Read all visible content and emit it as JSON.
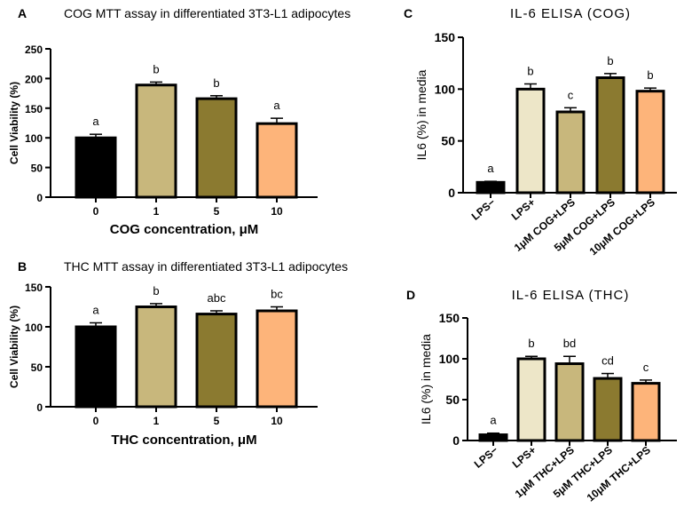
{
  "chart_data": [
    {
      "panel": "A",
      "type": "bar",
      "title": "COG MTT assay in differentiated 3T3-L1 adipocytes",
      "xlabel": "COG concentration, μM",
      "ylabel": "Cell Viability (%)",
      "categories": [
        "0",
        "1",
        "5",
        "10"
      ],
      "values": [
        100,
        189,
        166,
        124
      ],
      "errors": [
        6,
        5,
        5,
        9
      ],
      "letters": [
        "a",
        "b",
        "b",
        "a"
      ],
      "colors": [
        "#000000",
        "#c8b77c",
        "#8b7a30",
        "#fdb47a"
      ],
      "ylim": [
        0,
        250
      ],
      "yticks": [
        0,
        50,
        100,
        150,
        200,
        250
      ]
    },
    {
      "panel": "B",
      "type": "bar",
      "title": "THC MTT assay in differentiated 3T3-L1 adipocytes",
      "xlabel": "THC concentration, μM",
      "ylabel": "Cell Viability (%)",
      "categories": [
        "0",
        "1",
        "5",
        "10"
      ],
      "values": [
        100,
        125,
        116,
        120
      ],
      "errors": [
        5,
        4,
        4,
        5
      ],
      "letters": [
        "a",
        "b",
        "abc",
        "bc"
      ],
      "colors": [
        "#000000",
        "#c8b77c",
        "#8b7a30",
        "#fdb47a"
      ],
      "ylim": [
        0,
        150
      ],
      "yticks": [
        0,
        50,
        100,
        150
      ]
    },
    {
      "panel": "C",
      "type": "bar",
      "title": "IL-6 ELISA (COG)",
      "xlabel": "",
      "ylabel": "IL6 (%) in media",
      "categories": [
        "LPS−",
        "LPS+",
        "1μM COG+LPS",
        "5μM COG+LPS",
        "10μM COG+LPS"
      ],
      "values": [
        10,
        100,
        78,
        111,
        98
      ],
      "errors": [
        1,
        5,
        4,
        4,
        3
      ],
      "letters": [
        "a",
        "b",
        "c",
        "b",
        "b"
      ],
      "colors": [
        "#000000",
        "#ede6c8",
        "#c8b77c",
        "#8b7a30",
        "#fdb47a"
      ],
      "ylim": [
        0,
        150
      ],
      "yticks": [
        0,
        50,
        100,
        150
      ]
    },
    {
      "panel": "D",
      "type": "bar",
      "title": "IL-6 ELISA (THC)",
      "xlabel": "",
      "ylabel": "IL6 (%) in media",
      "categories": [
        "LPS−",
        "LPS+",
        "1μM THC+LPS",
        "5μM THC+LPS",
        "10μM THC+LPS"
      ],
      "values": [
        7,
        100,
        94,
        76,
        70
      ],
      "errors": [
        2,
        3,
        9,
        6,
        4
      ],
      "letters": [
        "a",
        "b",
        "bd",
        "cd",
        "c"
      ],
      "colors": [
        "#000000",
        "#ede6c8",
        "#c8b77c",
        "#8b7a30",
        "#fdb47a"
      ],
      "ylim": [
        0,
        150
      ],
      "yticks": [
        0,
        50,
        100,
        150
      ]
    }
  ]
}
